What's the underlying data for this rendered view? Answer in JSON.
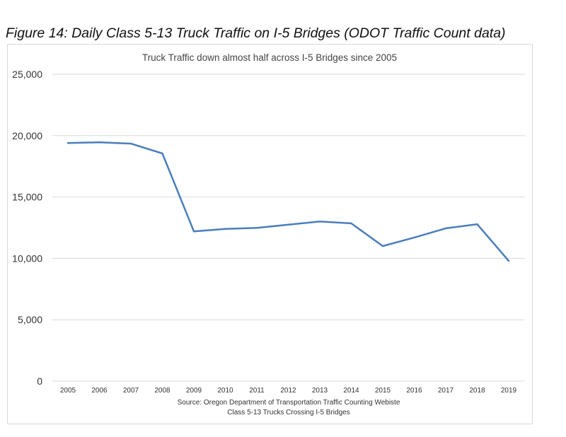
{
  "figure_caption": "Figure 14: Daily Class 5-13 Truck Traffic on I-5 Bridges (ODOT Traffic Count data)",
  "chart_data": {
    "type": "line",
    "title": "Truck Traffic down almost half across I-5 Bridges since 2005",
    "source_line": "Source:  Oregon Department of Transportation Traffic Counting Webiste",
    "xlabel": "Class 5-13 Trucks Crossing I-5 Bridges",
    "ylabel": "",
    "categories": [
      "2005",
      "2006",
      "2007",
      "2008",
      "2009",
      "2010",
      "2011",
      "2012",
      "2013",
      "2014",
      "2015",
      "2016",
      "2017",
      "2018",
      "2019"
    ],
    "series": [
      {
        "values": [
          19400,
          19450,
          19350,
          18550,
          12200,
          12400,
          12480,
          12750,
          13000,
          12850,
          11000,
          11700,
          12450,
          12780,
          9800
        ]
      }
    ],
    "ylim": [
      0,
      25000
    ],
    "yticks": [
      0,
      5000,
      10000,
      15000,
      20000,
      25000
    ],
    "ytick_labels": [
      "0",
      "5,000",
      "10,000",
      "15,000",
      "20,000",
      "25,000"
    ],
    "grid": true,
    "line_color": "#4a7ebb",
    "grid_color": "#d9d9d9"
  }
}
